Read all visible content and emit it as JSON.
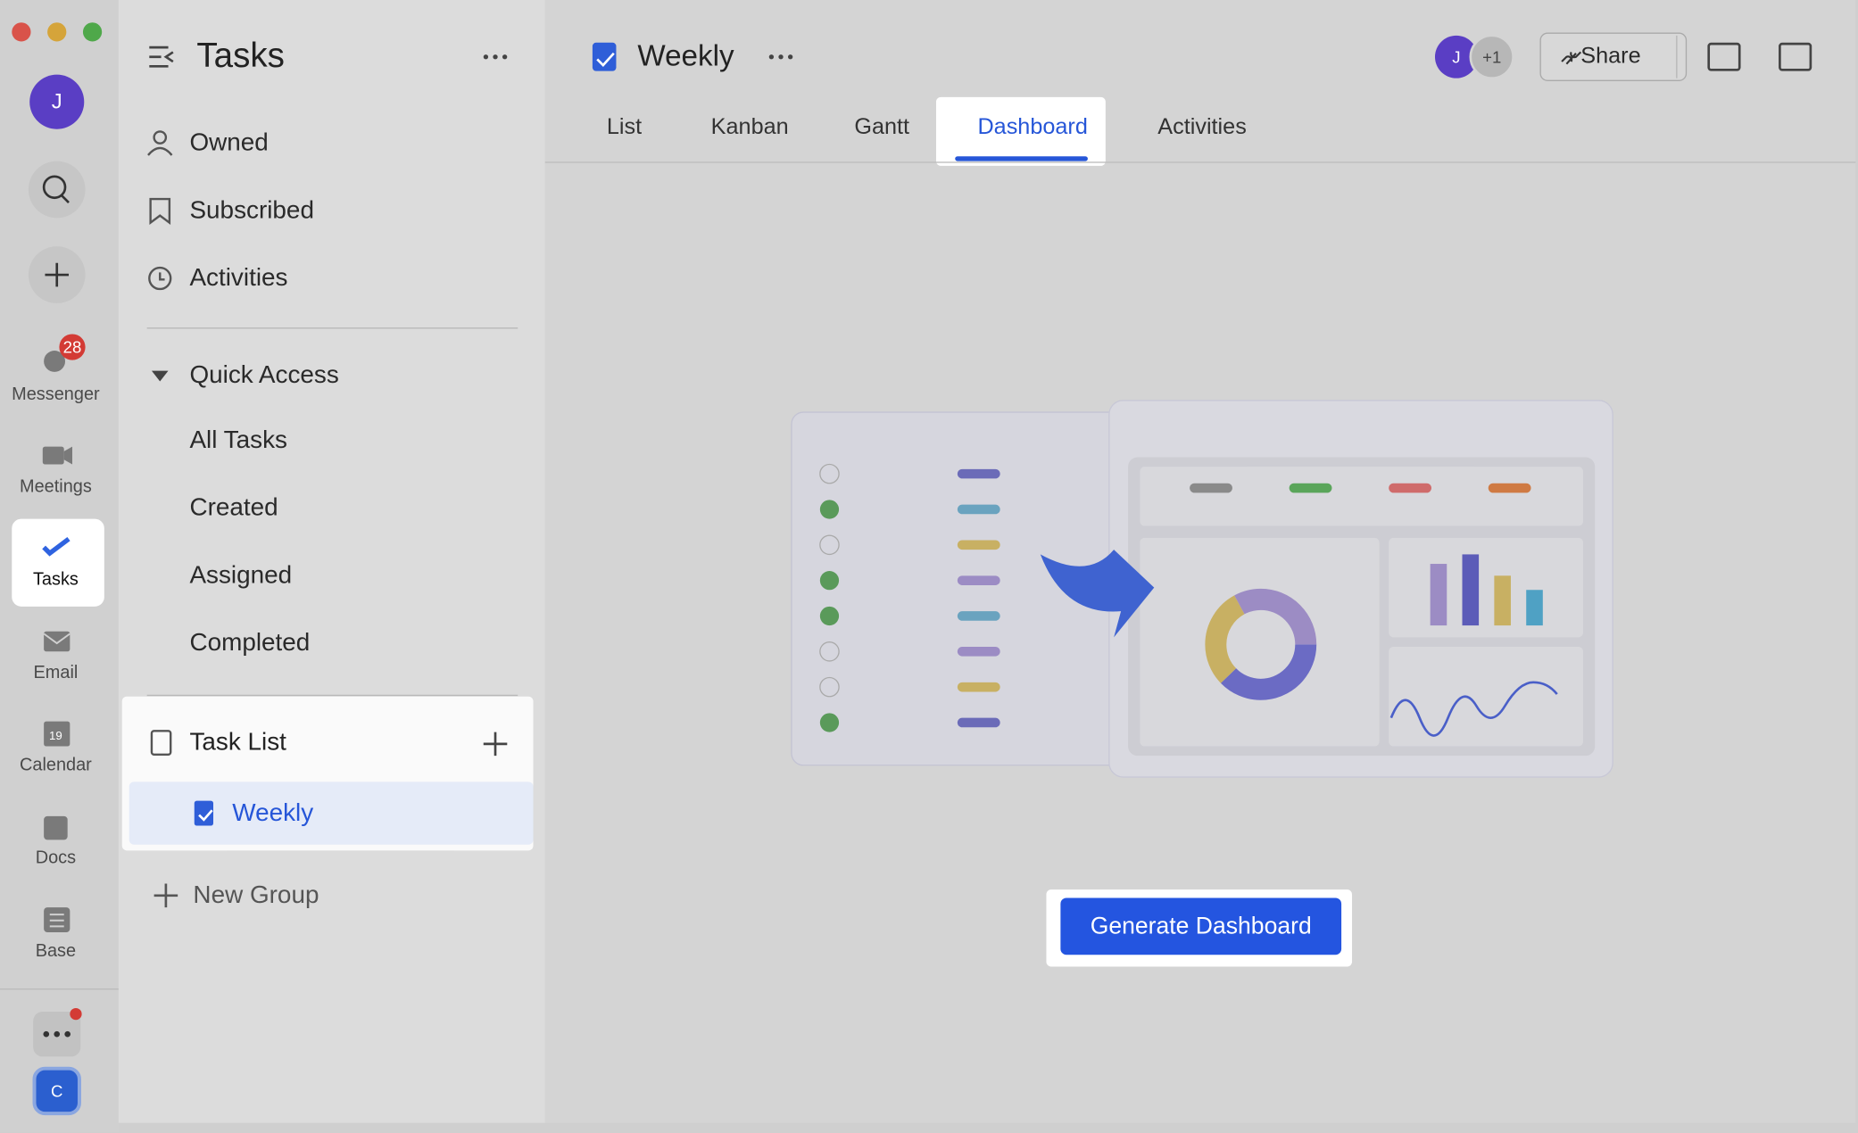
{
  "rail": {
    "avatar": "J",
    "badge": "28",
    "items": [
      "Messenger",
      "Meetings",
      "Tasks",
      "Email",
      "Calendar",
      "Docs",
      "Base"
    ],
    "calendar_day": "19",
    "bottom_avatar": "C"
  },
  "sidebar": {
    "title": "Tasks",
    "nav": [
      "Owned",
      "Subscribed",
      "Activities"
    ],
    "quick_access": {
      "title": "Quick Access",
      "items": [
        "All Tasks",
        "Created",
        "Assigned",
        "Completed"
      ]
    },
    "task_list": {
      "title": "Task List",
      "items": [
        "Weekly"
      ]
    },
    "new_group": "New Group"
  },
  "header": {
    "title": "Weekly",
    "avatar": "J",
    "extra_members": "+1",
    "share": "Share",
    "tabs": [
      "List",
      "Kanban",
      "Gantt",
      "Dashboard",
      "Activities"
    ],
    "active_tab": "Dashboard"
  },
  "main": {
    "button": "Generate Dashboard"
  }
}
